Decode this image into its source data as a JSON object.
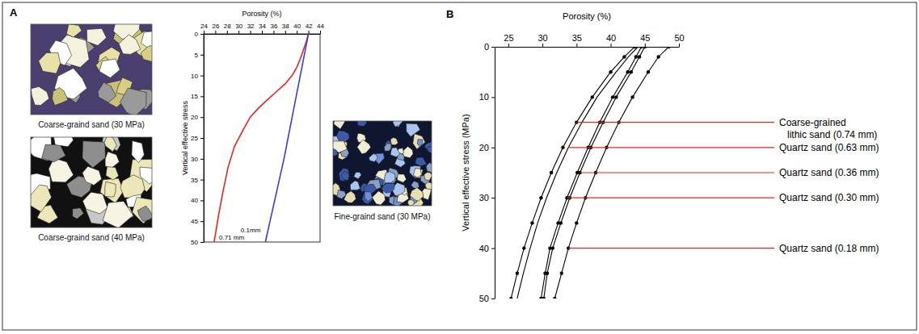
{
  "chart_data": [
    {
      "type": "line",
      "panel": "A",
      "x_label": "Porosity (%)",
      "y_label": "Vertical effective stress",
      "xlim": [
        24,
        44
      ],
      "xticks": [
        24,
        26,
        28,
        30,
        32,
        34,
        36,
        38,
        40,
        42,
        44
      ],
      "ylim": [
        0,
        50
      ],
      "yticks": [
        0,
        5,
        10,
        15,
        20,
        25,
        30,
        35,
        40,
        45,
        50
      ],
      "series": [
        {
          "name": "0.71 mm",
          "color": "#e4261f",
          "x": [
            42.0,
            41.6,
            41.1,
            40.6,
            40.0,
            39.2,
            38.0,
            36.4,
            34.8,
            33.3,
            32.0,
            30.8,
            29.3,
            28.2,
            27.3,
            26.5,
            25.8
          ],
          "values": [
            0,
            2,
            4,
            6,
            8,
            10,
            12,
            14,
            16,
            18,
            20,
            23,
            27,
            32,
            38,
            44,
            50
          ]
        },
        {
          "name": "0.1mm",
          "color": "#3b3bd8",
          "x": [
            42.0,
            41.3,
            40.6,
            39.9,
            39.2,
            38.5,
            37.8,
            37.0,
            36.2,
            35.4,
            34.6
          ],
          "values": [
            0,
            5,
            10,
            15,
            20,
            25,
            30,
            35,
            40,
            45,
            50
          ]
        }
      ],
      "photo_captions": [
        "Coarse-graind sand (30 MPa)",
        "Coarse-graind sand (40 MPa)",
        "Fine-graind sand (30 MPa)"
      ]
    },
    {
      "type": "line",
      "panel": "B",
      "x_label": "Porosity (%)",
      "y_label": "Vertical effective stress (MPa)",
      "xlim": [
        23,
        50
      ],
      "xticks": [
        25,
        30,
        35,
        40,
        45,
        50
      ],
      "ylim": [
        0,
        50
      ],
      "yticks": [
        0,
        10,
        20,
        30,
        40,
        50
      ],
      "series": [
        {
          "name": "Coarse-grained lithic sand (0.74 mm)",
          "color": "#000000",
          "marker": "circle",
          "x": [
            43.5,
            42.0,
            40.0,
            37.3,
            35.0,
            33.0,
            31.3,
            29.8,
            28.5,
            27.3,
            26.3,
            25.4
          ],
          "values": [
            0,
            2,
            5,
            10,
            15,
            20,
            25,
            30,
            35,
            40,
            45,
            50
          ]
        },
        {
          "name": "Quartz sand (0.63 mm)",
          "color": "#000000",
          "x": [
            44.0,
            42.6,
            40.8,
            38.0,
            35.8,
            33.8,
            32.1,
            30.6,
            29.3,
            28.2,
            27.2,
            26.3
          ],
          "values": [
            0,
            2,
            5,
            10,
            15,
            20,
            25,
            30,
            35,
            40,
            45,
            50
          ]
        },
        {
          "name": "Quartz sand (0.36 mm)",
          "color": "#000000",
          "marker": "circle",
          "x": [
            45.0,
            44.2,
            43.0,
            40.8,
            38.9,
            37.1,
            35.5,
            34.0,
            32.7,
            31.5,
            30.7,
            30.2
          ],
          "values": [
            0,
            2,
            5,
            10,
            15,
            20,
            25,
            30,
            35,
            40,
            45,
            50
          ]
        },
        {
          "name": "Quartz sand (0.30 mm)",
          "color": "#000000",
          "marker": "circle",
          "x": [
            44.5,
            43.7,
            42.5,
            40.3,
            38.4,
            36.7,
            35.1,
            33.6,
            32.3,
            31.1,
            30.4,
            29.8
          ],
          "values": [
            0,
            2,
            5,
            10,
            15,
            20,
            25,
            30,
            35,
            40,
            45,
            50
          ]
        },
        {
          "name": "Quartz sand (0.18 mm)",
          "color": "#000000",
          "marker": "circle",
          "x": [
            48.5,
            47.0,
            45.5,
            43.2,
            41.2,
            39.4,
            37.8,
            36.3,
            35.0,
            33.8,
            32.8,
            31.8
          ],
          "values": [
            0,
            2,
            5,
            10,
            15,
            20,
            25,
            30,
            35,
            40,
            45,
            50
          ]
        }
      ]
    }
  ]
}
